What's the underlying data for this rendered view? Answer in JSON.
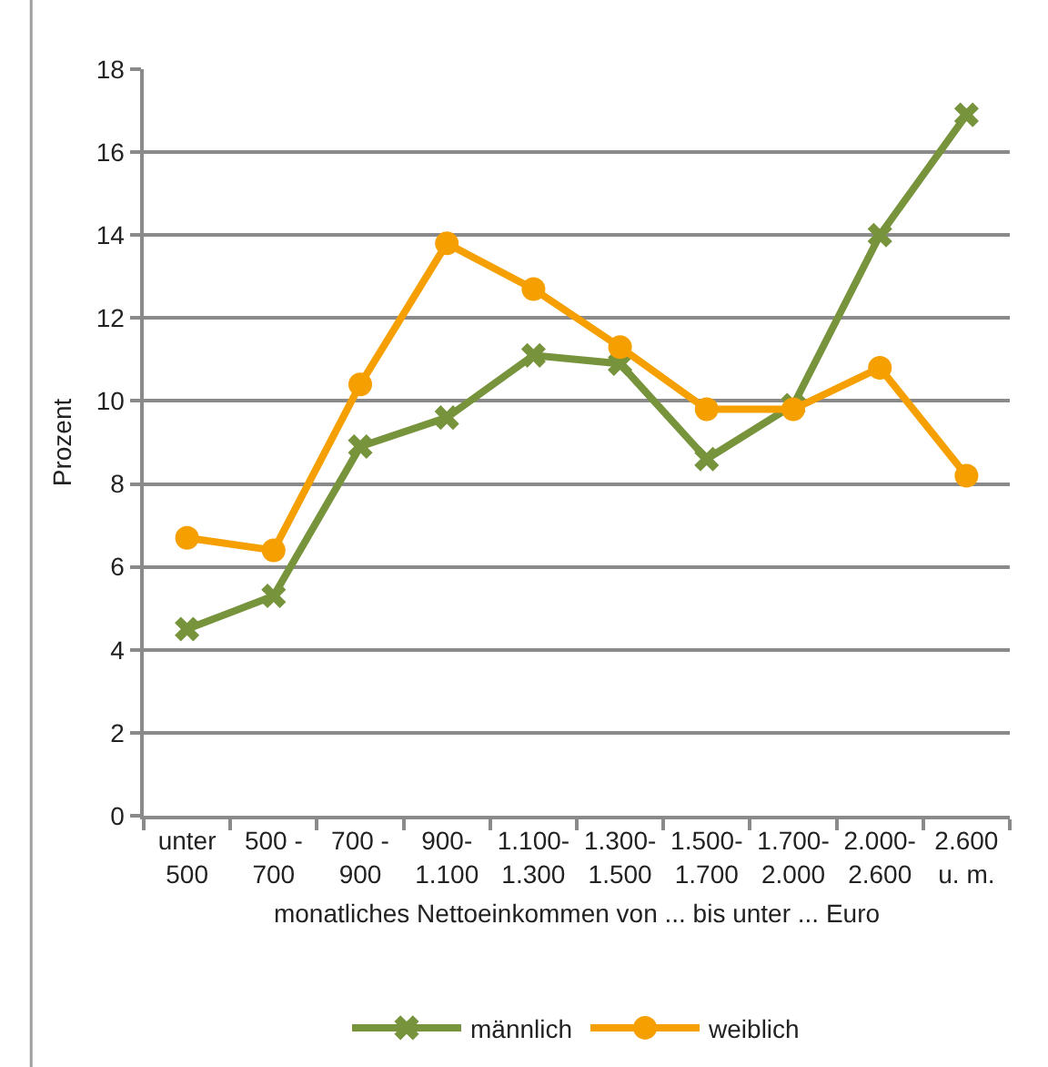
{
  "chart_data": {
    "type": "line",
    "xlabel": "monatliches Nettoeinkommen von ... bis unter ... Euro",
    "ylabel": "Prozent",
    "categories": [
      "unter\n500",
      "500 -\n700",
      "700 -\n900",
      "900-\n1.100",
      "1.100-\n1.300",
      "1.300-\n1.500",
      "1.500-\n1.700",
      "1.700-\n2.000",
      "2.000-\n2.600",
      "2.600\nu. m."
    ],
    "series": [
      {
        "name": "männlich",
        "color": "#77933c",
        "marker": "cross",
        "values": [
          4.5,
          5.3,
          8.9,
          9.6,
          11.1,
          10.9,
          8.6,
          9.9,
          14.0,
          16.9
        ]
      },
      {
        "name": "weiblich",
        "color": "#f59f00",
        "marker": "circle",
        "values": [
          6.7,
          6.4,
          10.4,
          13.8,
          12.7,
          11.3,
          9.8,
          9.8,
          10.8,
          8.2
        ]
      }
    ],
    "ylim": [
      0,
      18
    ],
    "yticks": [
      0,
      2,
      4,
      6,
      8,
      10,
      12,
      14,
      16,
      18
    ],
    "grid": "y",
    "legend": "bottom",
    "line_style": "solid"
  }
}
